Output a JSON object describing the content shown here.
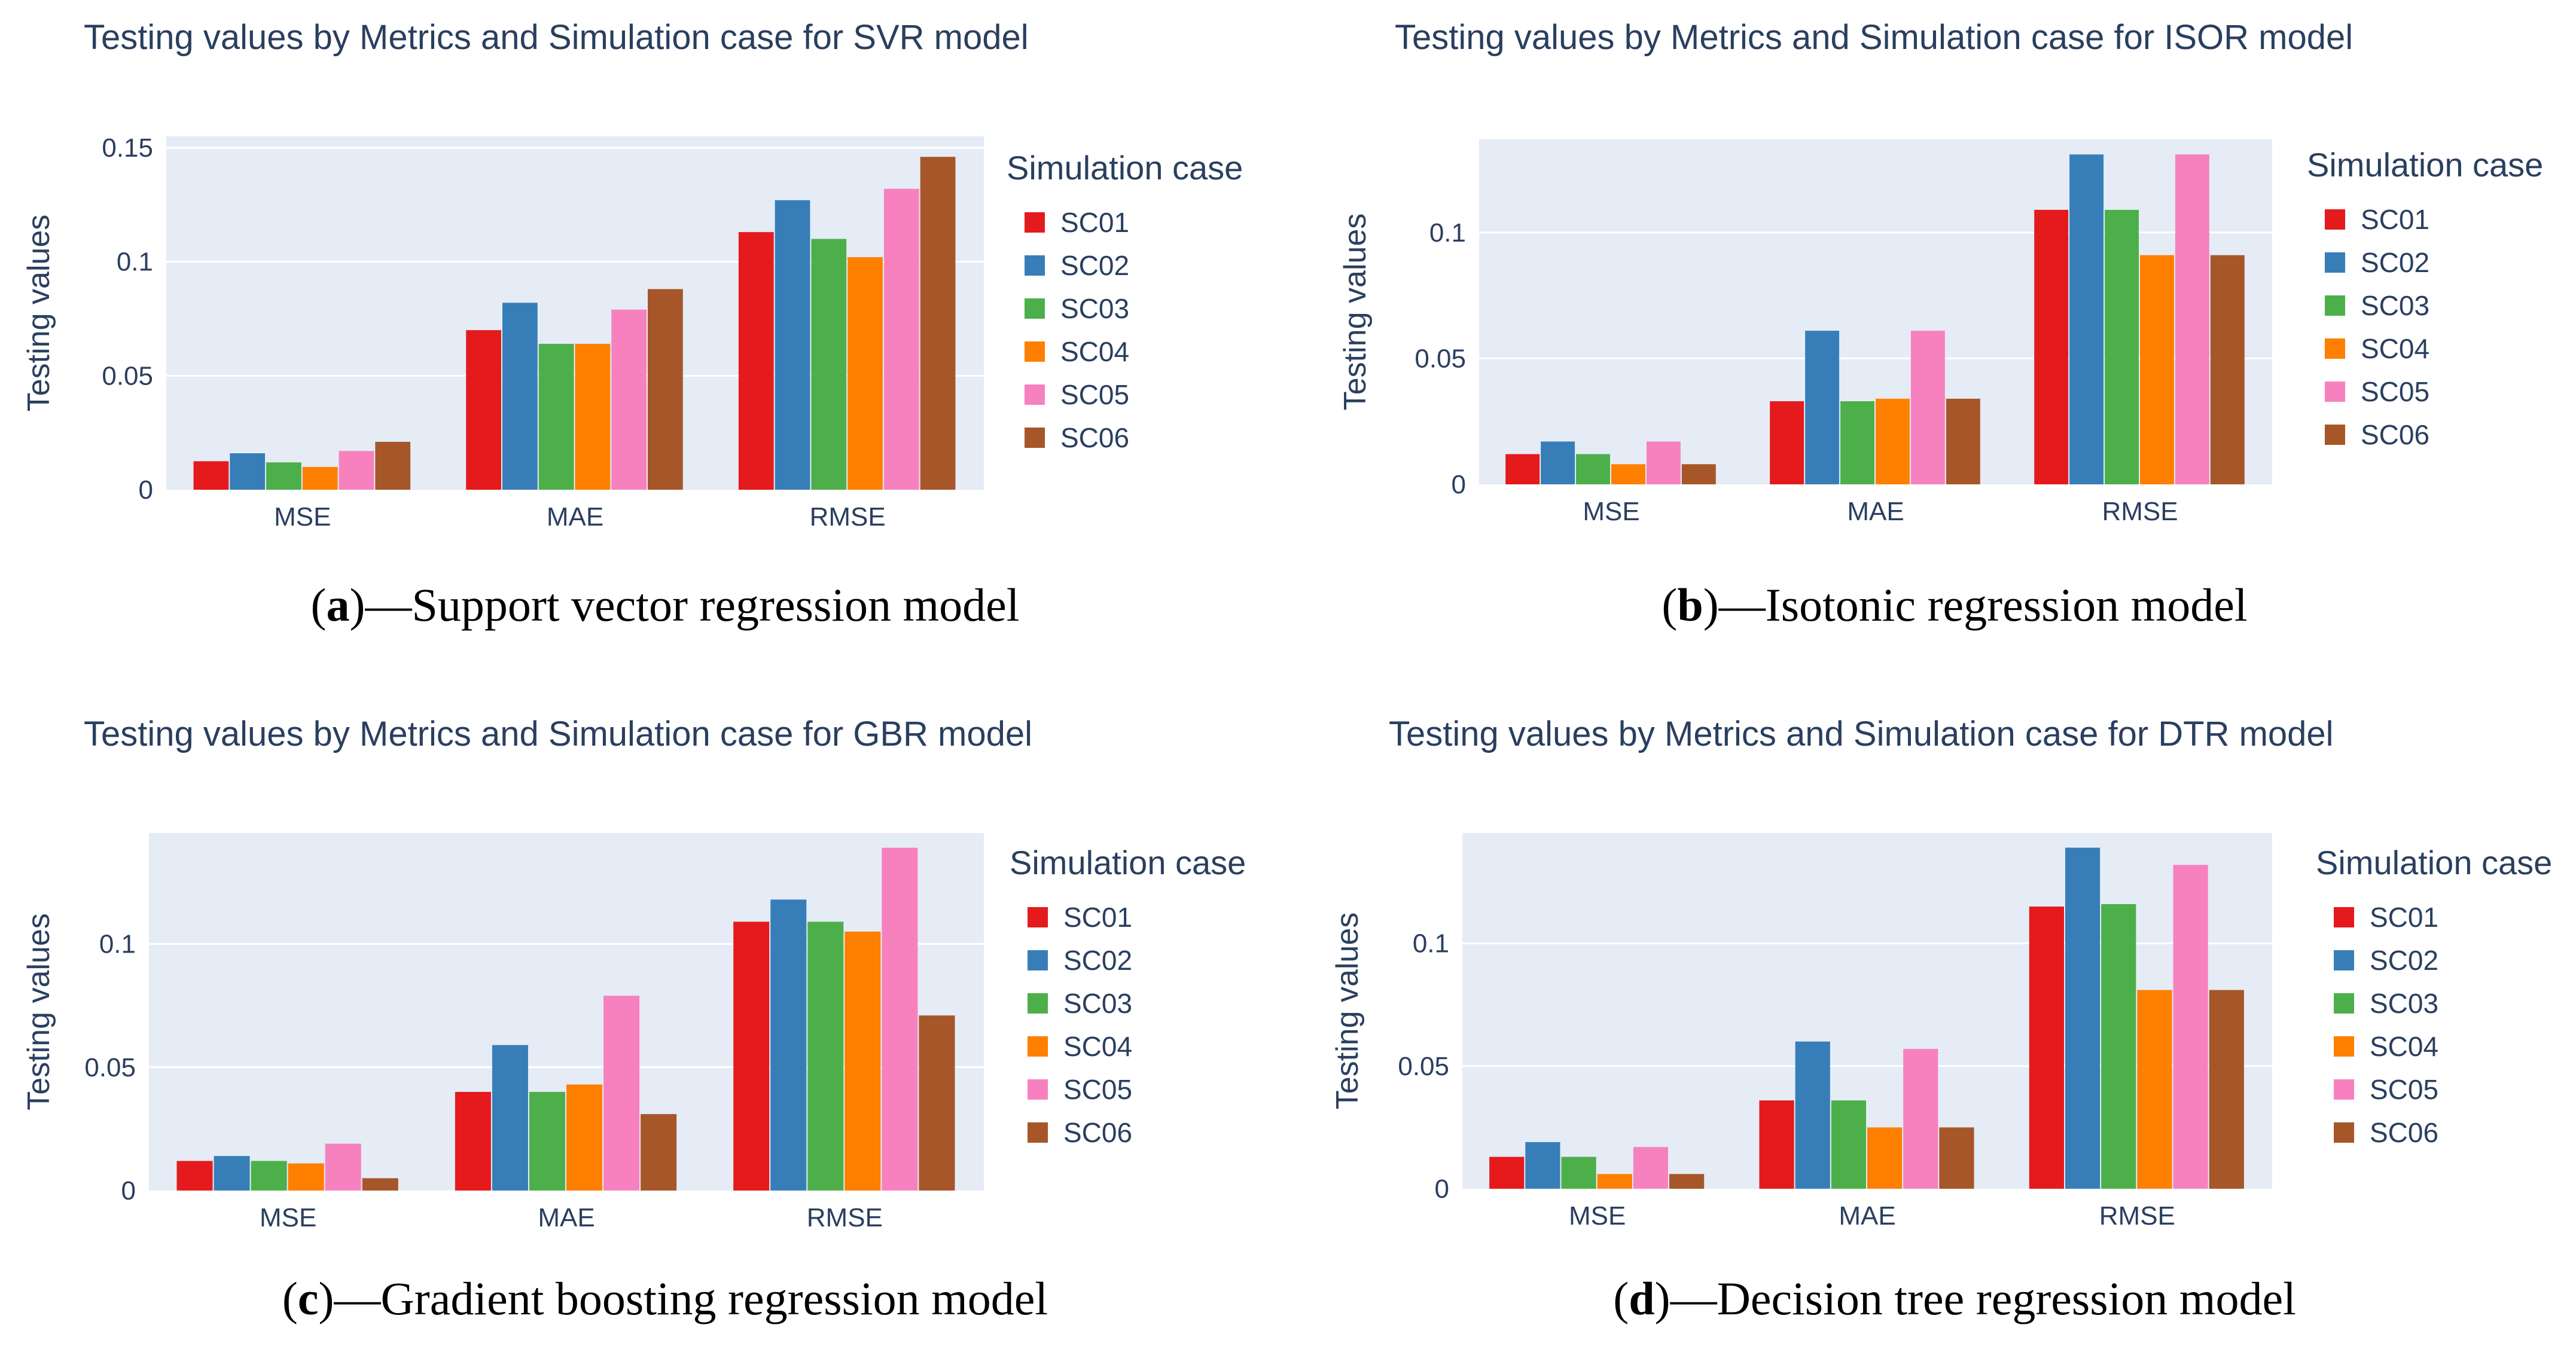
{
  "series_names": [
    "SC01",
    "SC02",
    "SC03",
    "SC04",
    "SC05",
    "SC06"
  ],
  "colors": {
    "SC01": "#e41a1c",
    "SC02": "#377eb8",
    "SC03": "#4daf4a",
    "SC04": "#ff7f00",
    "SC05": "#f781bf",
    "SC06": "#a65628",
    "plot_bg": "#e5ecf6",
    "grid": "#ffffff",
    "text": "#2a3f5f"
  },
  "chart_data": [
    {
      "id": "a",
      "type": "bar",
      "title": "Testing values by Metrics and Simulation case for SVR model",
      "xlabel": "",
      "ylabel": "Testing values",
      "legend_title": "Simulation case",
      "legend_position": "right",
      "categories": [
        "MSE",
        "MAE",
        "RMSE"
      ],
      "ylim": [
        0,
        0.155
      ],
      "yticks": [
        0,
        0.05,
        0.1,
        0.15
      ],
      "ytick_labels": [
        "0",
        "0.05",
        "0.1",
        "0.15"
      ],
      "series": [
        {
          "name": "SC01",
          "values": [
            0.0125,
            0.07,
            0.113
          ]
        },
        {
          "name": "SC02",
          "values": [
            0.016,
            0.082,
            0.127
          ]
        },
        {
          "name": "SC03",
          "values": [
            0.012,
            0.064,
            0.11
          ]
        },
        {
          "name": "SC04",
          "values": [
            0.01,
            0.064,
            0.102
          ]
        },
        {
          "name": "SC05",
          "values": [
            0.017,
            0.079,
            0.132
          ]
        },
        {
          "name": "SC06",
          "values": [
            0.021,
            0.088,
            0.146
          ]
        }
      ],
      "caption_letter": "a",
      "caption_open": "(",
      "caption_text": ")—Support vector regression model"
    },
    {
      "id": "b",
      "type": "bar",
      "title": "Testing values by Metrics and Simulation case for ISOR model",
      "xlabel": "",
      "ylabel": "Testing values",
      "legend_title": "Simulation case",
      "legend_position": "right",
      "categories": [
        "MSE",
        "MAE",
        "RMSE"
      ],
      "ylim": [
        0,
        0.137
      ],
      "yticks": [
        0,
        0.05,
        0.1
      ],
      "ytick_labels": [
        "0",
        "0.05",
        "0.1"
      ],
      "series": [
        {
          "name": "SC01",
          "values": [
            0.012,
            0.033,
            0.109
          ]
        },
        {
          "name": "SC02",
          "values": [
            0.017,
            0.061,
            0.131
          ]
        },
        {
          "name": "SC03",
          "values": [
            0.012,
            0.033,
            0.109
          ]
        },
        {
          "name": "SC04",
          "values": [
            0.008,
            0.034,
            0.091
          ]
        },
        {
          "name": "SC05",
          "values": [
            0.017,
            0.061,
            0.131
          ]
        },
        {
          "name": "SC06",
          "values": [
            0.008,
            0.034,
            0.091
          ]
        }
      ],
      "caption_letter": "b",
      "caption_open": "(",
      "caption_text": ")—Isotonic regression model"
    },
    {
      "id": "c",
      "type": "bar",
      "title": "Testing values by Metrics and Simulation case for GBR model",
      "xlabel": "",
      "ylabel": "Testing values",
      "legend_title": "Simulation case",
      "legend_position": "right",
      "categories": [
        "MSE",
        "MAE",
        "RMSE"
      ],
      "ylim": [
        0,
        0.145
      ],
      "yticks": [
        0,
        0.05,
        0.1
      ],
      "ytick_labels": [
        "0",
        "0.05",
        "0.1"
      ],
      "series": [
        {
          "name": "SC01",
          "values": [
            0.012,
            0.04,
            0.109
          ]
        },
        {
          "name": "SC02",
          "values": [
            0.014,
            0.059,
            0.118
          ]
        },
        {
          "name": "SC03",
          "values": [
            0.012,
            0.04,
            0.109
          ]
        },
        {
          "name": "SC04",
          "values": [
            0.011,
            0.043,
            0.105
          ]
        },
        {
          "name": "SC05",
          "values": [
            0.019,
            0.079,
            0.139
          ]
        },
        {
          "name": "SC06",
          "values": [
            0.005,
            0.031,
            0.071
          ]
        }
      ],
      "caption_letter": "c",
      "caption_open": "(",
      "caption_text": ")—Gradient boosting regression model"
    },
    {
      "id": "d",
      "type": "bar",
      "title": "Testing values by Metrics and Simulation case for DTR model",
      "xlabel": "",
      "ylabel": "Testing values",
      "legend_title": "Simulation case",
      "legend_position": "right",
      "categories": [
        "MSE",
        "MAE",
        "RMSE"
      ],
      "ylim": [
        0,
        0.145
      ],
      "yticks": [
        0,
        0.05,
        0.1
      ],
      "ytick_labels": [
        "0",
        "0.05",
        "0.1"
      ],
      "series": [
        {
          "name": "SC01",
          "values": [
            0.013,
            0.036,
            0.115
          ]
        },
        {
          "name": "SC02",
          "values": [
            0.019,
            0.06,
            0.139
          ]
        },
        {
          "name": "SC03",
          "values": [
            0.013,
            0.036,
            0.116
          ]
        },
        {
          "name": "SC04",
          "values": [
            0.006,
            0.025,
            0.081
          ]
        },
        {
          "name": "SC05",
          "values": [
            0.017,
            0.057,
            0.132
          ]
        },
        {
          "name": "SC06",
          "values": [
            0.006,
            0.025,
            0.081
          ]
        }
      ],
      "caption_letter": "d",
      "caption_open": "(",
      "caption_text": ")—Decision tree regression model"
    }
  ]
}
